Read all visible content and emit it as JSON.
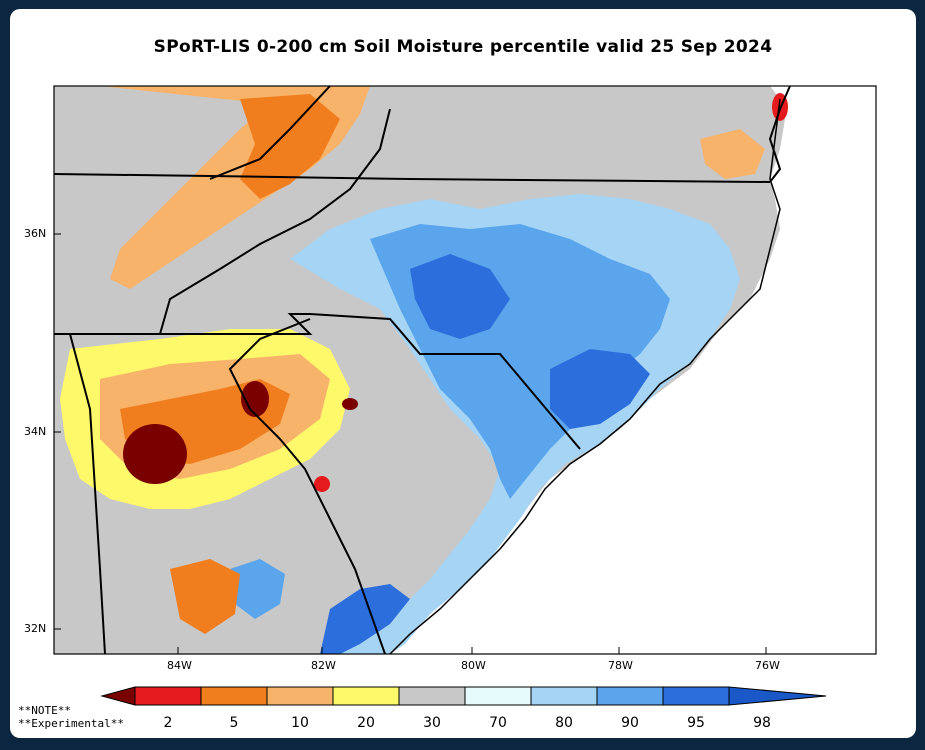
{
  "title": "SPoRT-LIS 0-200 cm Soil Moisture percentile valid 25 Sep 2024",
  "lat_labels": [
    "36N",
    "34N",
    "32N"
  ],
  "lon_labels": [
    "84W",
    "82W",
    "80W",
    "78W",
    "76W"
  ],
  "notes": {
    "line1": "**NOTE**",
    "line2": "**Experimental**"
  },
  "colorbar": {
    "labels": [
      "2",
      "5",
      "10",
      "20",
      "30",
      "70",
      "80",
      "90",
      "95",
      "98"
    ],
    "colors": [
      "#7a0000",
      "#e41a1c",
      "#f07e1e",
      "#f7b36a",
      "#fef96a",
      "#c8c8c8",
      "#e6fbfb",
      "#a6d4f4",
      "#5aa5ec",
      "#2c6fdc",
      "#1a58c8"
    ]
  },
  "colors": {
    "background": "#0d2640",
    "panel": "#ffffff",
    "land_gray": "#c8c8c8",
    "ocean": "#ffffff",
    "border": "#000000"
  }
}
